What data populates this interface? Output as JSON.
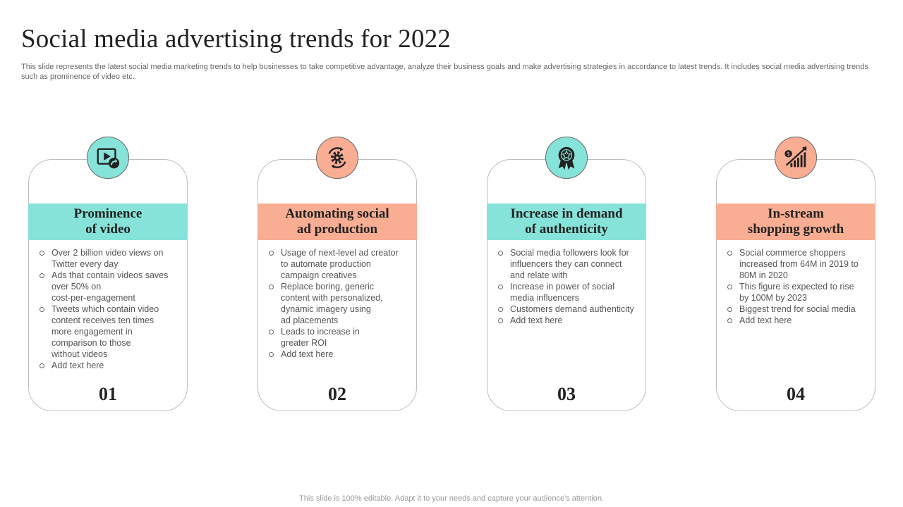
{
  "slide": {
    "title": "Social media advertising trends for 2022",
    "subtitle": "This slide represents the latest social media marketing trends to help businesses to take competitive advantage, analyze their business goals and make advertising strategies in accordance to latest trends. It includes social media advertising trends such as prominence of video etc.",
    "footer": "This slide is 100% editable. Adapt it to your needs and capture your audience's attention."
  },
  "colors": {
    "teal": "#86e3d9",
    "salmon": "#f9ad93"
  },
  "cards": [
    {
      "icon": "video-play-icon",
      "heading": "Prominence\nof video",
      "number": "01",
      "bullets": [
        "Over 2 billion video views on\nTwitter every day",
        "Ads that contain videos saves\nover 50% on\ncost-per-engagement",
        "Tweets which contain video\ncontent receives ten times\nmore engagement in\ncomparison to those\nwithout videos",
        "Add text here"
      ]
    },
    {
      "icon": "automation-gear-icon",
      "heading": "Automating social\nad production",
      "number": "02",
      "bullets": [
        "Usage of next-level ad creator\nto automate production\ncampaign creatives",
        "Replace boring, generic\ncontent with personalized,\ndynamic imagery using\nad placements",
        "Leads to increase in\ngreater ROI",
        "Add text here"
      ]
    },
    {
      "icon": "award-badge-icon",
      "heading": "Increase in demand\nof authenticity",
      "number": "03",
      "bullets": [
        "Social media followers look for\ninfluencers they can connect\nand relate with",
        "Increase in power of social\nmedia influencers",
        "Customers demand authenticity",
        "Add text here"
      ]
    },
    {
      "icon": "growth-chart-icon",
      "heading": "In-stream\nshopping growth",
      "number": "04",
      "bullets": [
        "Social commerce shoppers\nincreased from 64M in 2019 to\n80M in 2020",
        "This figure is expected to rise\nby 100M by 2023",
        "Biggest trend for social media",
        "Add text here"
      ]
    }
  ]
}
